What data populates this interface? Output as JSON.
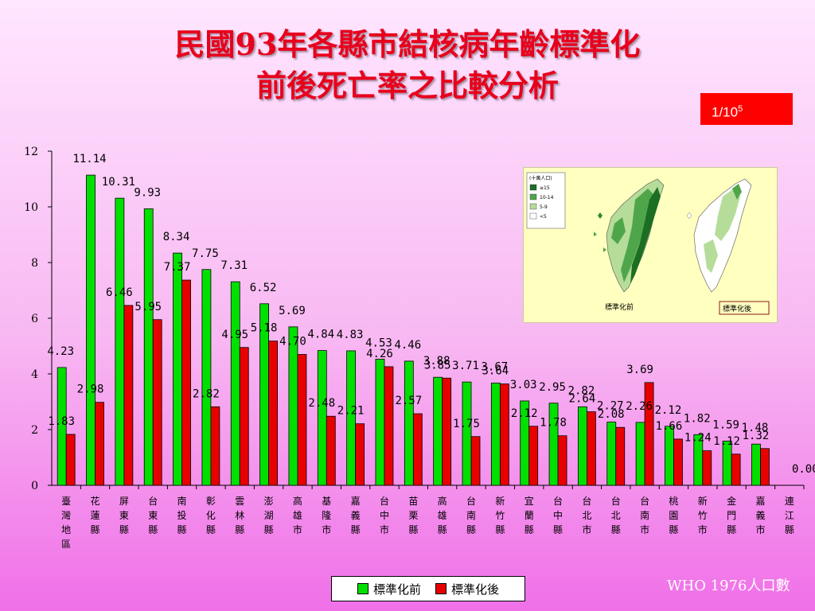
{
  "title_line1": "民國93年各縣市結核病年齡標準化",
  "title_line2": "前後死亡率之比較分析",
  "unit": {
    "base": "1/10",
    "exp": "5"
  },
  "source_note": "WHO 1976人口數",
  "colors": {
    "before": "#00e000",
    "after": "#e80000"
  },
  "map_inset": {
    "legend_title": "(十萬人口)",
    "legend_items": [
      "≥15",
      "10-14",
      "5-9",
      "<5"
    ],
    "left_caption": "標準化前",
    "right_caption": "標準化後"
  },
  "chart_data": {
    "type": "bar",
    "categories": [
      "臺灣地區",
      "花蓮縣",
      "屏東縣",
      "台東縣",
      "南投縣",
      "彰化縣",
      "雲林縣",
      "澎湖縣",
      "高雄市",
      "基隆市",
      "嘉義縣",
      "台中市",
      "苗栗縣",
      "高雄縣",
      "台南縣",
      "新竹縣",
      "宜蘭縣",
      "台中縣",
      "台北市",
      "台北縣",
      "台南市",
      "桃園縣",
      "新竹市",
      "金門縣",
      "嘉義市",
      "連江縣"
    ],
    "series": [
      {
        "name": "標準化前",
        "values": [
          4.23,
          11.14,
          10.31,
          9.93,
          8.34,
          7.75,
          7.31,
          6.52,
          5.69,
          4.84,
          4.83,
          4.53,
          4.46,
          3.88,
          3.71,
          3.67,
          3.03,
          2.95,
          2.82,
          2.27,
          2.26,
          2.12,
          1.82,
          1.59,
          1.48,
          0.0
        ]
      },
      {
        "name": "標準化後",
        "values": [
          1.83,
          2.98,
          6.46,
          5.95,
          7.37,
          2.82,
          4.95,
          5.18,
          4.7,
          2.48,
          2.21,
          4.26,
          2.57,
          3.85,
          1.75,
          3.64,
          2.12,
          1.78,
          2.64,
          2.08,
          3.69,
          1.66,
          1.24,
          1.12,
          1.32,
          0.0
        ]
      }
    ],
    "labels_before": [
      "4.23",
      "11.14",
      "10.31",
      "9.93",
      "8.34",
      "7.75",
      "7.31",
      "6.52",
      "5.69",
      "4.84",
      "4.83",
      "4.53",
      "4.46",
      "3.88",
      "3.71",
      "3.67",
      "3.03",
      "2.95",
      "2.82",
      "2.27",
      "2.26",
      "2.12",
      "1.82",
      "1.59",
      "1.48",
      "0.00"
    ],
    "labels_after": [
      "1.83",
      "2.98",
      "6.46",
      "5.95",
      "7.37",
      "2.82",
      "4.95",
      "5.18",
      "4.70",
      "2.48",
      "2.21",
      "4.26",
      "2.57",
      "3.85",
      "1.75",
      "3.64",
      "2.12",
      "1.78",
      "2.64",
      "2.08",
      "3.69",
      "1.66",
      "1.24",
      "1.12",
      "1.32",
      ""
    ],
    "y_ticks": [
      "0",
      "2",
      "4",
      "6",
      "8",
      "10",
      "12"
    ],
    "ylim": [
      0,
      12
    ],
    "legend_position": "bottom"
  }
}
